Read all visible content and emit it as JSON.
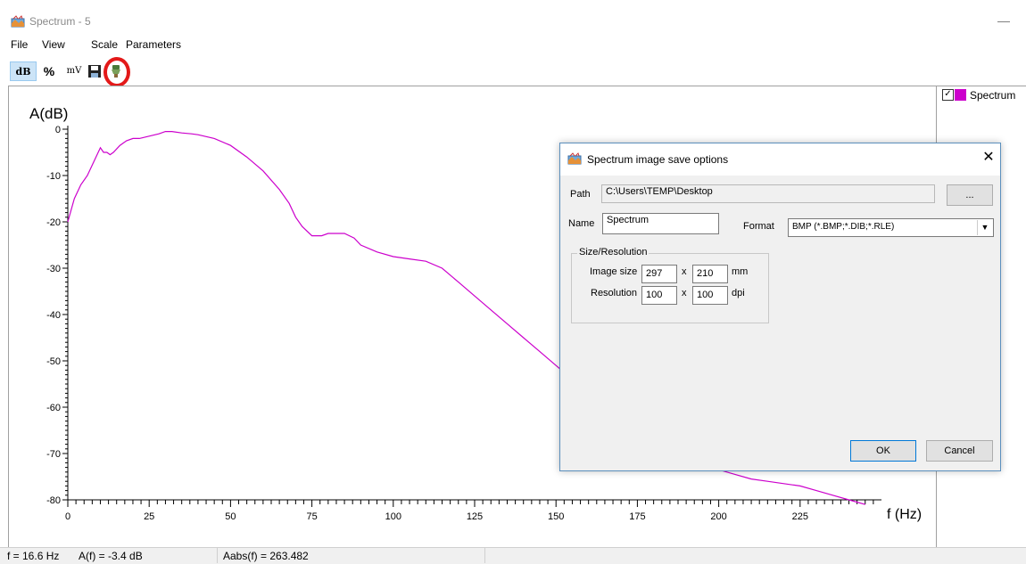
{
  "window": {
    "title": "Spectrum - 5",
    "minimize_glyph": "—"
  },
  "menu": [
    "File",
    "View",
    "Scale",
    "Parameters"
  ],
  "toolbar": {
    "db_label": "dB",
    "percent_label": "%",
    "mv_label": "mV",
    "save_icon": "save-icon",
    "image_icon": "image-export-icon"
  },
  "chart_data": {
    "type": "line",
    "ylabel": "A(dB)",
    "xlabel": "f (Hz)",
    "xlim": [
      0,
      250
    ],
    "ylim": [
      -80,
      0
    ],
    "xticks": [
      0,
      25,
      50,
      75,
      100,
      125,
      150,
      175,
      200,
      225
    ],
    "yticks": [
      0,
      -10,
      -20,
      -30,
      -40,
      -50,
      -60,
      -70,
      -80
    ],
    "series": [
      {
        "name": "Spectrum",
        "color": "#cc00cc",
        "x": [
          0,
          2,
          4,
          6,
          8,
          10,
          11,
          12,
          13,
          14,
          16,
          18,
          20,
          22,
          25,
          28,
          30,
          32,
          35,
          38,
          40,
          45,
          50,
          55,
          60,
          65,
          68,
          70,
          72,
          75,
          78,
          80,
          82,
          85,
          88,
          90,
          95,
          100,
          105,
          110,
          115,
          120,
          125,
          130,
          135,
          140,
          145,
          150,
          155,
          160,
          165,
          170,
          175,
          180,
          185,
          190,
          195,
          200,
          205,
          210,
          215,
          220,
          225,
          230,
          235,
          240,
          245
        ],
        "y": [
          -20,
          -15,
          -12,
          -10,
          -7,
          -4,
          -5,
          -5,
          -5.5,
          -5,
          -3.5,
          -2.5,
          -2,
          -2,
          -1.5,
          -1,
          -0.5,
          -0.5,
          -0.8,
          -1,
          -1.2,
          -2,
          -3.5,
          -6,
          -9,
          -13,
          -16,
          -19,
          -21,
          -23,
          -23,
          -22.5,
          -22.5,
          -22.5,
          -23.5,
          -25,
          -26.5,
          -27.5,
          -28,
          -28.5,
          -30,
          -33,
          -36,
          -39,
          -42,
          -45,
          -48,
          -51,
          -54,
          -57,
          -60,
          -63,
          -66,
          -68,
          -70,
          -71.5,
          -72.5,
          -73.5,
          -74.5,
          -75.5,
          -76,
          -76.5,
          -77,
          -78,
          -79,
          -80,
          -81
        ]
      }
    ],
    "grid": false,
    "legend_position": "right panel"
  },
  "legend": {
    "label": "Spectrum",
    "checked": true,
    "color": "#cc00cc"
  },
  "status": {
    "freq": "f =   16.6 Hz",
    "amp": "A(f) =   -3.4 dB",
    "aabs": "Aabs(f) =  263.482"
  },
  "dialog": {
    "title": "Spectrum image save options",
    "close_glyph": "✕",
    "path_label": "Path",
    "path_value": "C:\\Users\\TEMP\\Desktop",
    "browse_label": "...",
    "name_label": "Name",
    "name_value": "Spectrum",
    "format_label": "Format",
    "format_value": "BMP (*.BMP;*.DIB;*.RLE)",
    "group_title": "Size/Resolution",
    "image_size_label": "Image size",
    "width_value": "297",
    "height_value": "210",
    "size_unit": "mm",
    "resolution_label": "Resolution",
    "res_x_value": "100",
    "res_y_value": "100",
    "res_unit": "dpi",
    "times": "x",
    "ok_label": "OK",
    "cancel_label": "Cancel"
  }
}
